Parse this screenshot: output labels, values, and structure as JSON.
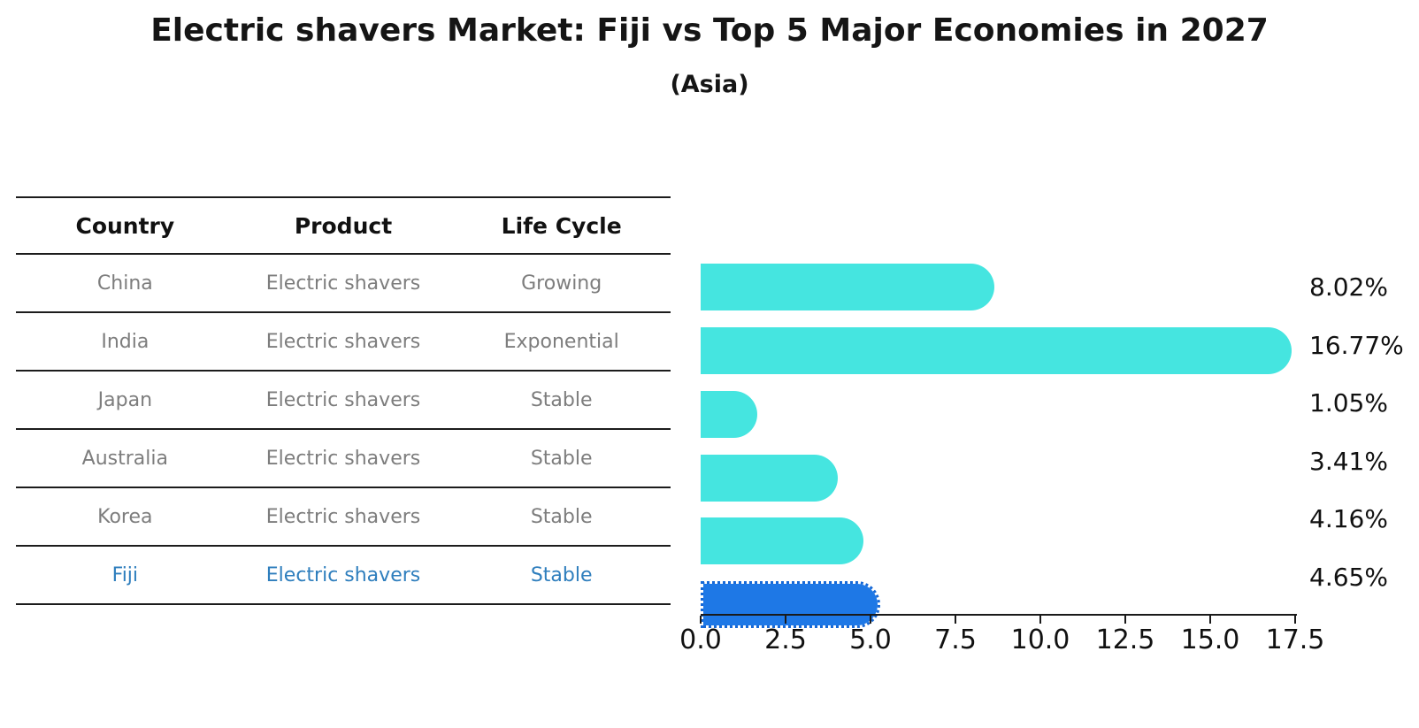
{
  "title": "Electric shavers Market: Fiji vs Top 5 Major Economies in 2027",
  "subtitle": "(Asia)",
  "table": {
    "headers": [
      "Country",
      "Product",
      "Life Cycle"
    ],
    "rows": [
      {
        "country": "China",
        "product": "Electric shavers",
        "life_cycle": "Growing"
      },
      {
        "country": "India",
        "product": "Electric shavers",
        "life_cycle": "Exponential"
      },
      {
        "country": "Japan",
        "product": "Electric shavers",
        "life_cycle": "Stable"
      },
      {
        "country": "Australia",
        "product": "Electric shavers",
        "life_cycle": "Stable"
      },
      {
        "country": "Korea",
        "product": "Electric shavers",
        "life_cycle": "Stable"
      },
      {
        "country": "Fiji",
        "product": "Electric shavers",
        "life_cycle": "Stable"
      }
    ]
  },
  "chart_data": {
    "type": "bar",
    "orientation": "horizontal",
    "title": "Electric shavers Market: Fiji vs Top 5 Major Economies in 2027",
    "subtitle": "(Asia)",
    "categories": [
      "China",
      "India",
      "Japan",
      "Australia",
      "Korea",
      "Fiji"
    ],
    "values": [
      8.02,
      16.77,
      1.05,
      3.41,
      4.16,
      4.65
    ],
    "value_labels": [
      "8.02%",
      "16.77%",
      "1.05%",
      "3.41%",
      "4.16%",
      "4.65%"
    ],
    "x_ticks": [
      "0.0",
      "2.5",
      "5.0",
      "7.5",
      "10.0",
      "12.5",
      "15.0",
      "17.5"
    ],
    "xlim": [
      0,
      17.5
    ],
    "xlabel": "",
    "ylabel": "",
    "grid": false,
    "legend": false,
    "highlight_category": "Fiji",
    "colors": {
      "bar": "#45e5e0",
      "highlight_bar": "#1e78e6",
      "highlight_text": "#2e7ebd",
      "table_text": "#7d7d7d",
      "text": "#111111"
    }
  }
}
